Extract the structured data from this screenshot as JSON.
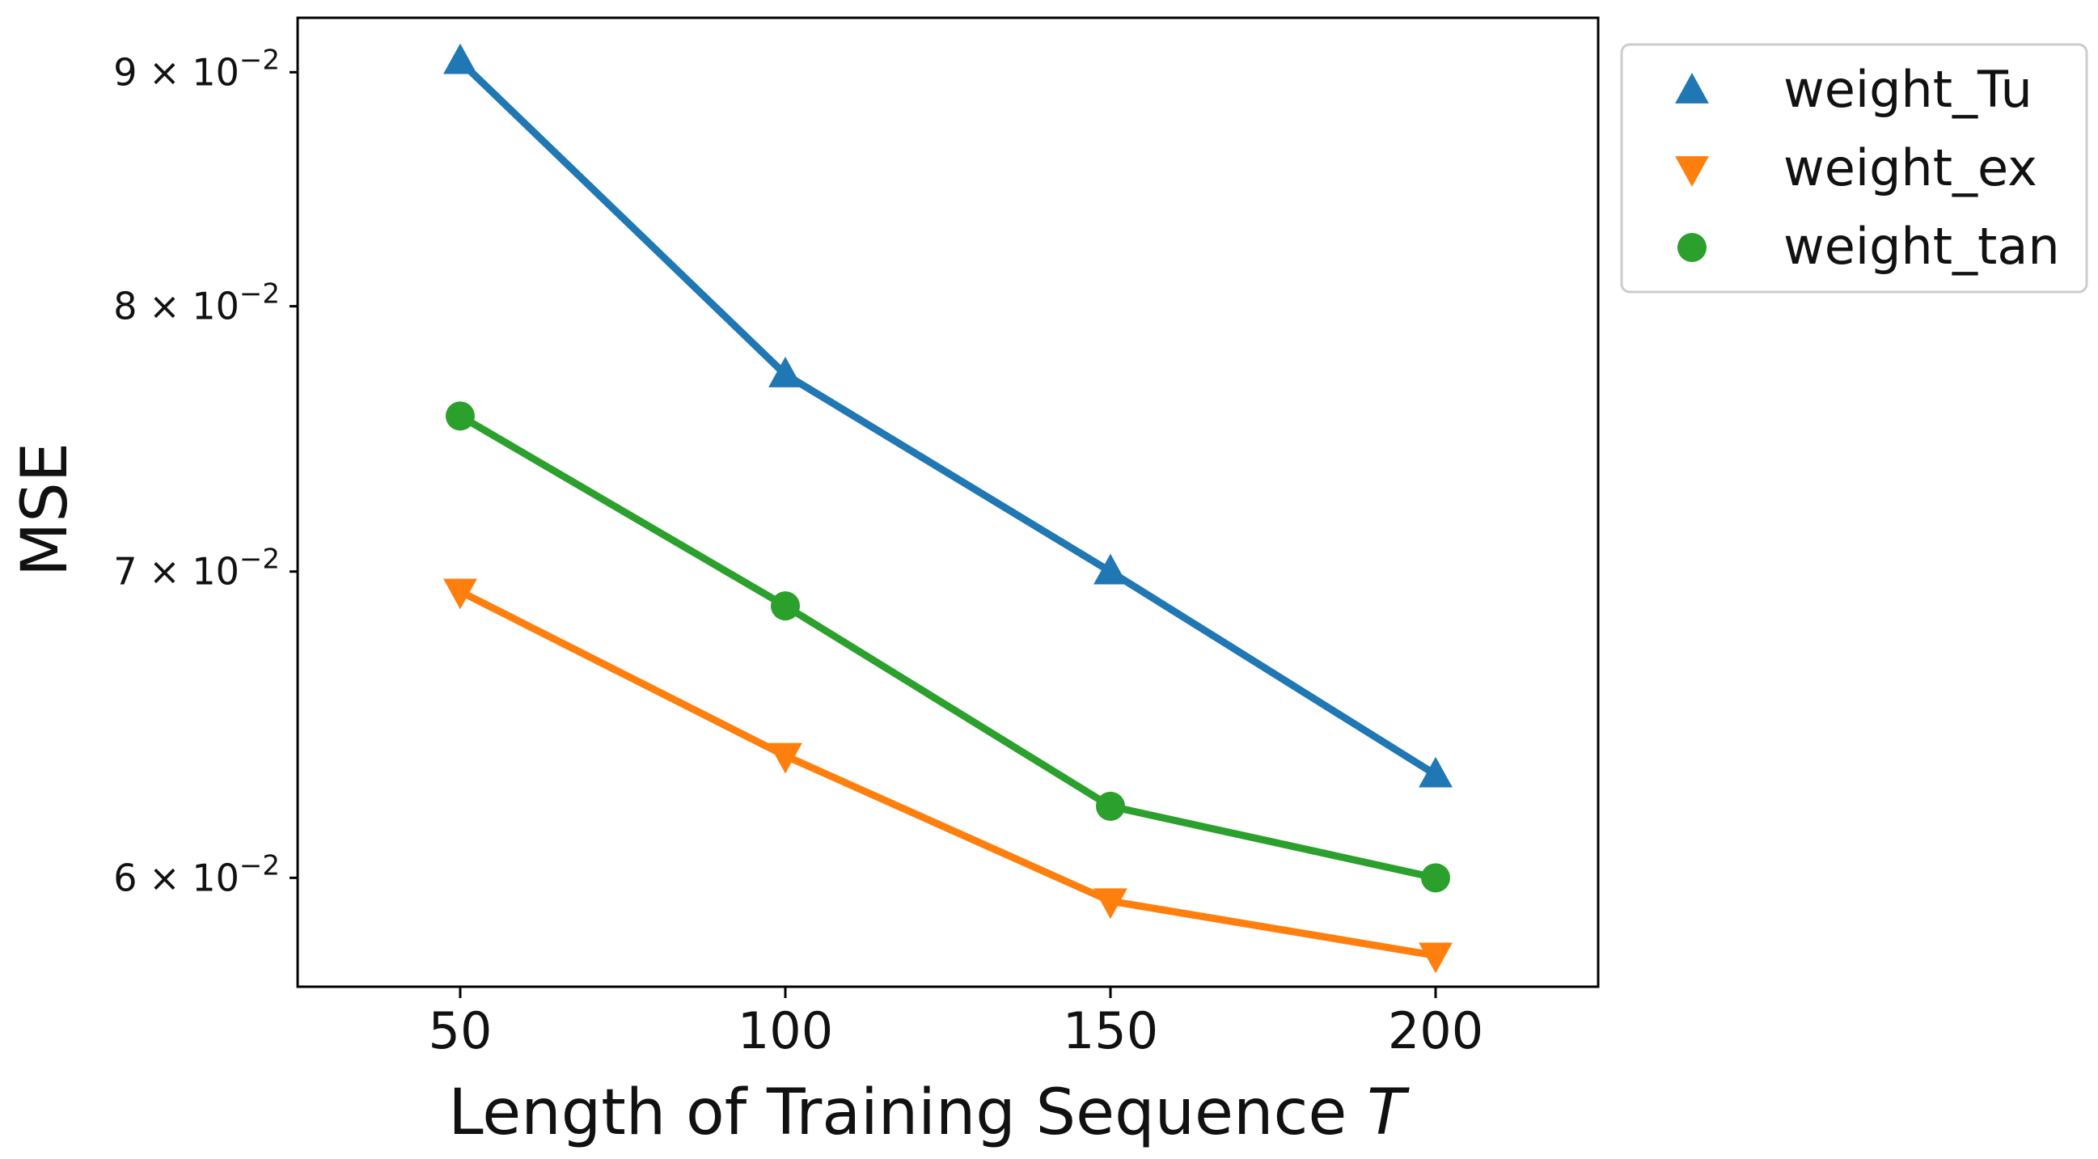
{
  "chart_data": {
    "type": "line",
    "title": "",
    "xlabel": "Length of Training Sequence",
    "xlabel_var": "T",
    "ylabel": "MSE",
    "yscale": "log",
    "x": [
      50,
      100,
      150,
      200
    ],
    "xlim": [
      25,
      225
    ],
    "ylim": [
      0.0568,
      0.0925
    ],
    "xticks": [
      {
        "value": 50,
        "label": "50"
      },
      {
        "value": 100,
        "label": "100"
      },
      {
        "value": 150,
        "label": "150"
      },
      {
        "value": 200,
        "label": "200"
      }
    ],
    "yticks": [
      {
        "value": 0.06,
        "mantissa": "6",
        "base": "10",
        "exponent": "−2"
      },
      {
        "value": 0.07,
        "mantissa": "7",
        "base": "10",
        "exponent": "−2"
      },
      {
        "value": 0.08,
        "mantissa": "8",
        "base": "10",
        "exponent": "−2"
      },
      {
        "value": 0.09,
        "mantissa": "9",
        "base": "10",
        "exponent": "−2"
      }
    ],
    "series": [
      {
        "name": "weight_Tu",
        "values": [
          0.0905,
          0.0773,
          0.07,
          0.0632
        ],
        "color": "#1f77b4",
        "marker": "triangle-up"
      },
      {
        "name": "weight_ex",
        "values": [
          0.0693,
          0.0638,
          0.0593,
          0.0577
        ],
        "color": "#ff7f0e",
        "marker": "triangle-down"
      },
      {
        "name": "weight_tan",
        "values": [
          0.0757,
          0.0688,
          0.0622,
          0.06
        ],
        "color": "#2ca02c",
        "marker": "circle"
      }
    ],
    "legend": {
      "position": "outside-upper-right"
    },
    "grid": false
  }
}
